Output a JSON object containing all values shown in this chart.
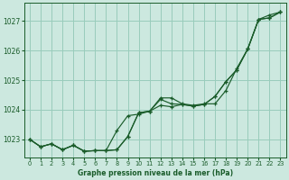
{
  "bg_color": "#cce8df",
  "grid_color": "#99ccbb",
  "line_color": "#1a5c2a",
  "title": "Graphe pression niveau de la mer (hPa)",
  "xlim": [
    -0.5,
    23.5
  ],
  "ylim": [
    1022.4,
    1027.6
  ],
  "yticks": [
    1023,
    1024,
    1025,
    1026,
    1027
  ],
  "xticks": [
    0,
    1,
    2,
    3,
    4,
    5,
    6,
    7,
    8,
    9,
    10,
    11,
    12,
    13,
    14,
    15,
    16,
    17,
    18,
    19,
    20,
    21,
    22,
    23
  ],
  "series": [
    [
      1023.0,
      1022.75,
      1022.85,
      1022.65,
      1022.8,
      1022.6,
      1022.62,
      1022.62,
      1022.65,
      1023.1,
      1023.9,
      1023.95,
      1024.4,
      1024.4,
      1024.2,
      1024.15,
      1024.2,
      1024.2,
      1024.65,
      1025.4,
      1026.05,
      1027.05,
      1027.2,
      1027.3
    ],
    [
      1023.0,
      1022.75,
      1022.85,
      1022.65,
      1022.8,
      1022.6,
      1022.62,
      1022.62,
      1022.65,
      1023.1,
      1023.9,
      1023.95,
      1024.35,
      1024.2,
      1024.18,
      1024.12,
      1024.18,
      1024.45,
      1024.95,
      1025.35,
      1026.05,
      1027.05,
      1027.1,
      1027.3
    ],
    [
      1023.0,
      1022.75,
      1022.85,
      1022.65,
      1022.8,
      1022.6,
      1022.62,
      1022.62,
      1023.3,
      1023.8,
      1023.85,
      1023.95,
      1024.15,
      1024.1,
      1024.18,
      1024.12,
      1024.18,
      1024.45,
      1024.95,
      1025.35,
      1026.05,
      1027.05,
      1027.1,
      1027.3
    ]
  ]
}
